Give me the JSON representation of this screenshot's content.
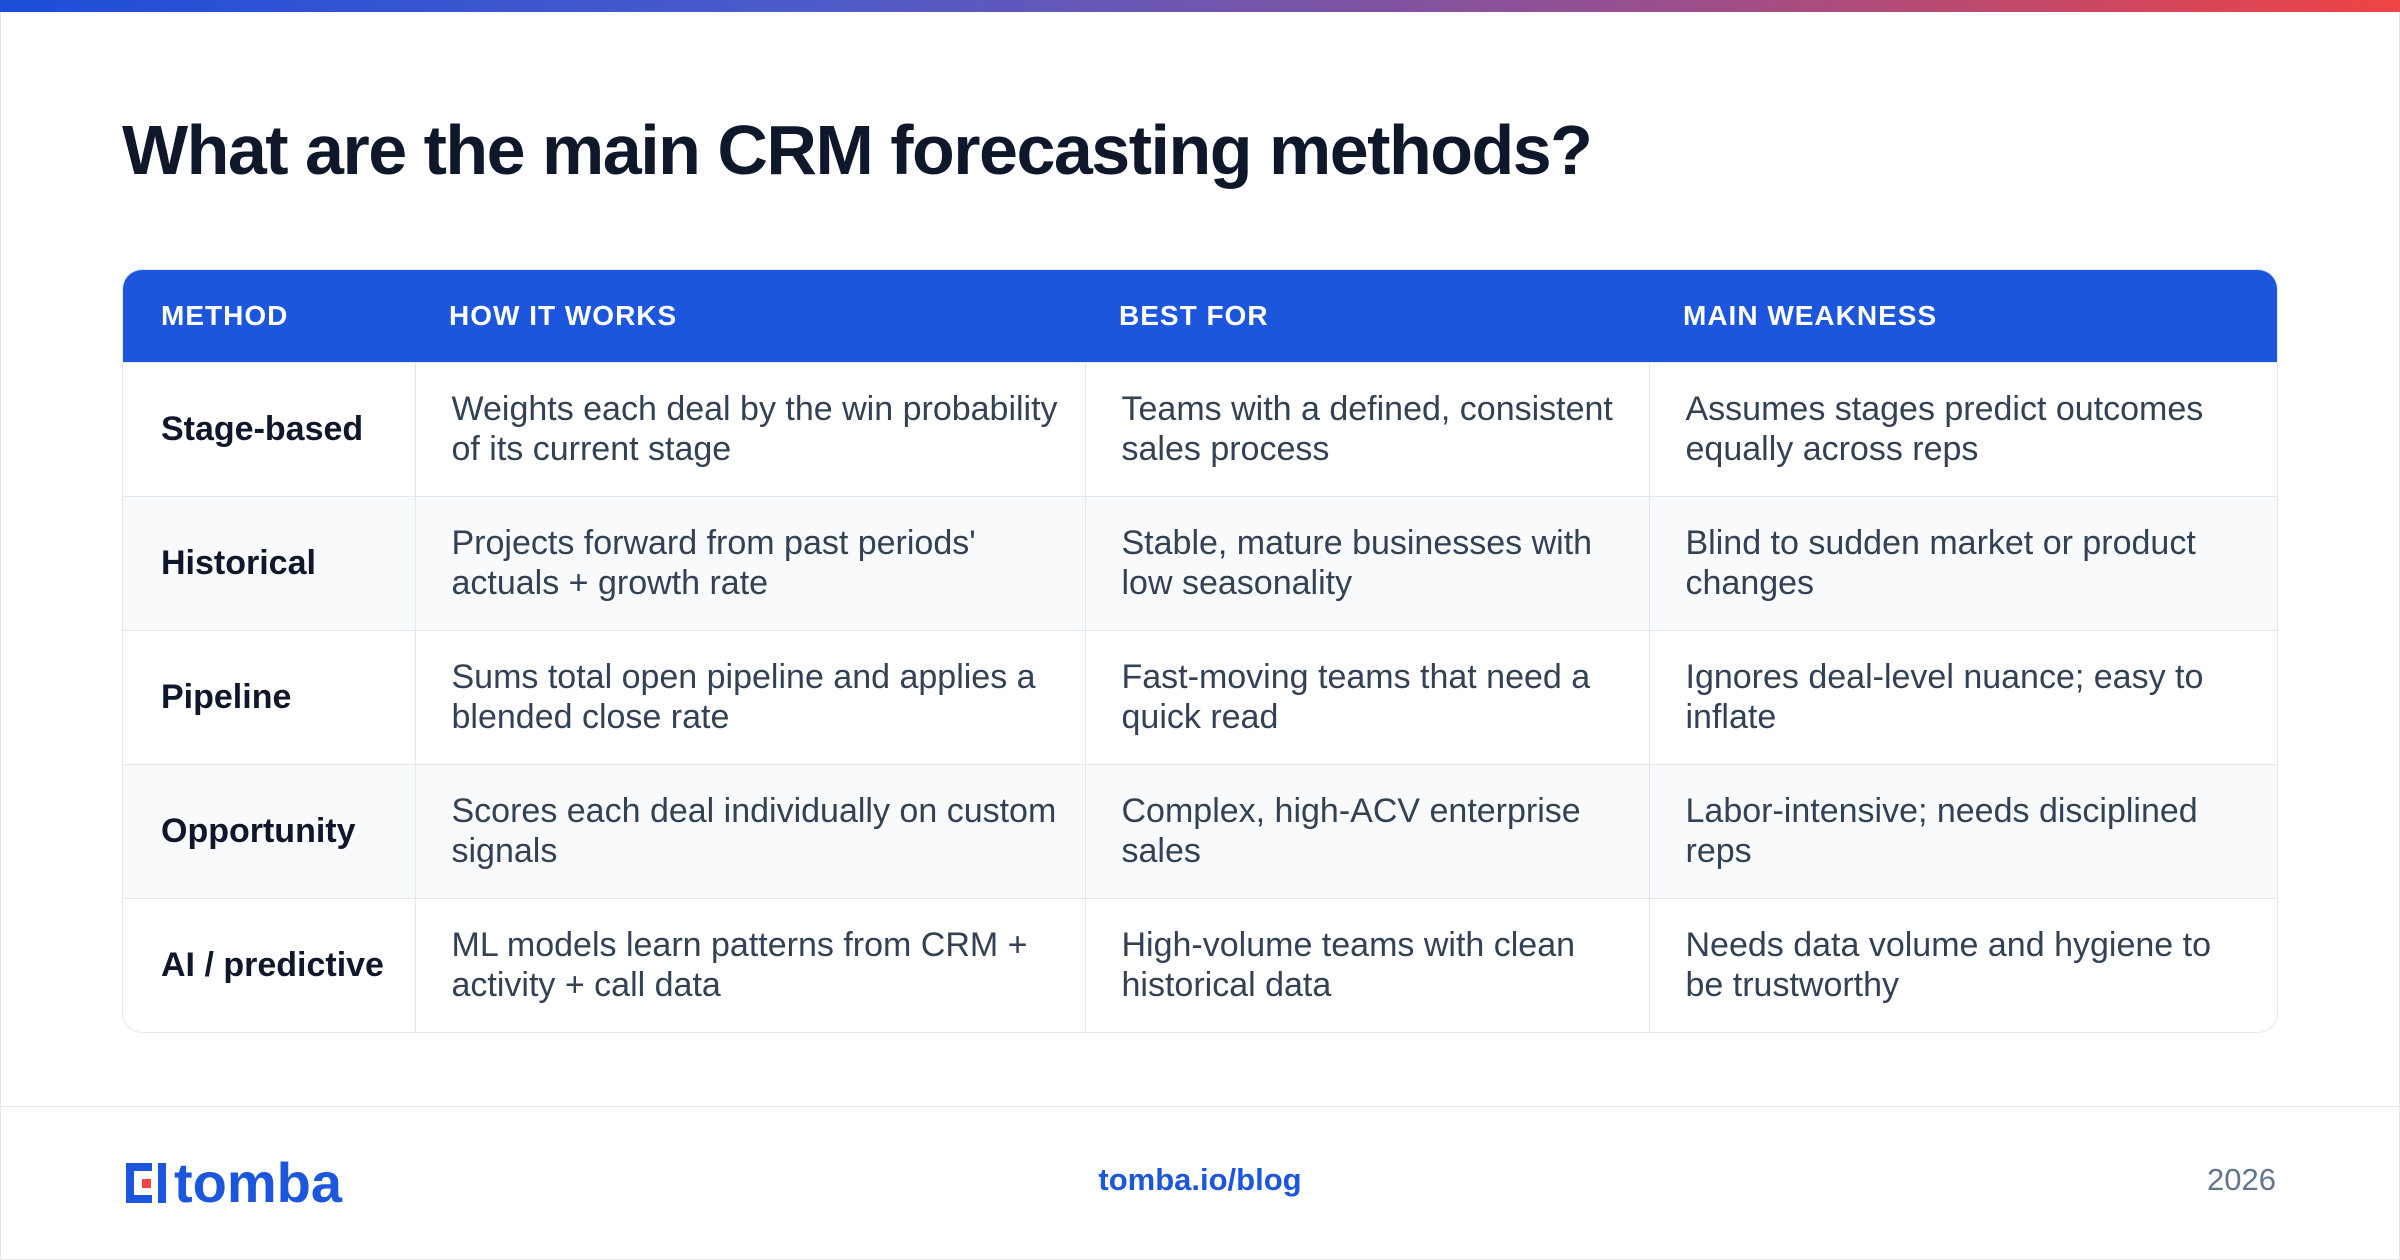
{
  "title": "What are the main CRM forecasting methods?",
  "table": {
    "headers": [
      "METHOD",
      "HOW IT WORKS",
      "BEST FOR",
      "MAIN WEAKNESS"
    ],
    "rows": [
      {
        "method": "Stage-based",
        "how": "Weights each deal by the win probability of its current stage",
        "best": "Teams with a defined, consistent sales process",
        "weakness": "Assumes stages predict outcomes equally across reps"
      },
      {
        "method": "Historical",
        "how": "Projects forward from past periods' actuals + growth rate",
        "best": "Stable, mature businesses with low seasonality",
        "weakness": "Blind to sudden market or product changes"
      },
      {
        "method": "Pipeline",
        "how": "Sums total open pipeline and applies a blended close rate",
        "best": "Fast-moving teams that need a quick read",
        "weakness": "Ignores deal-level nuance; easy to inflate"
      },
      {
        "method": "Opportunity",
        "how": "Scores each deal individually on custom signals",
        "best": "Complex, high-ACV enterprise sales",
        "weakness": "Labor-intensive; needs disciplined reps"
      },
      {
        "method": "AI / predictive",
        "how": "ML models learn patterns from CRM + activity + call data",
        "best": "High-volume teams with clean historical data",
        "weakness": "Needs data volume and hygiene to be trustworthy"
      }
    ]
  },
  "footer": {
    "brand": "tomba",
    "link": "tomba.io/blog",
    "year": "2026"
  },
  "colors": {
    "accent": "#1b56dc",
    "gradient_start": "#1d4ed8",
    "gradient_end": "#ef4444",
    "logo_red": "#ef4444"
  }
}
